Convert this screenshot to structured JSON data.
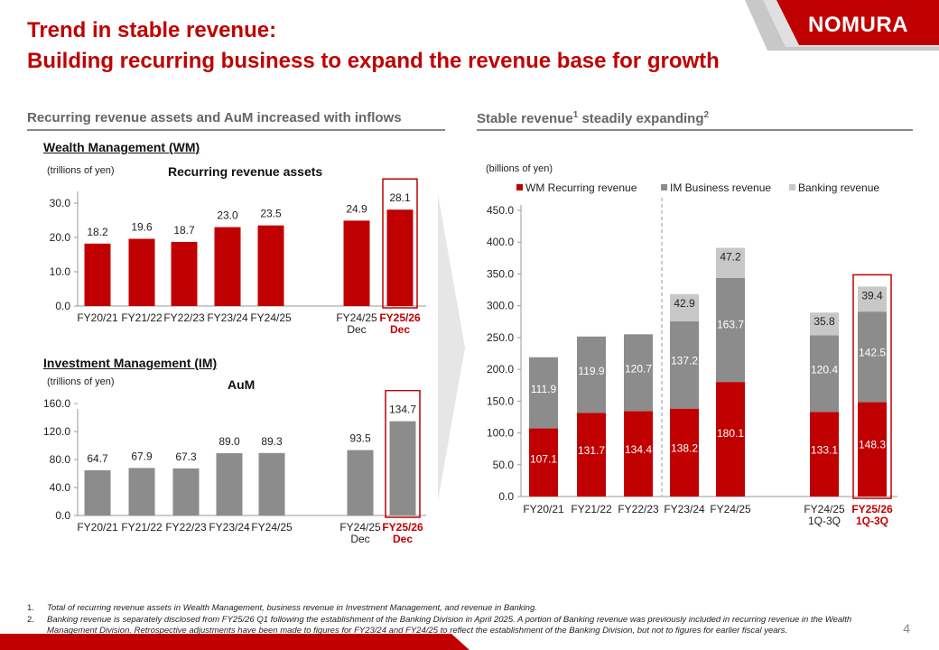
{
  "page": {
    "title_line1": "Trend in stable revenue:",
    "title_line2": "Building recurring business to expand the revenue base for growth",
    "logo_text": "NOMURA",
    "page_number": "4",
    "colors": {
      "red": "#c00000",
      "gray": "#8c8c8c",
      "lightgray": "#c8c8c8"
    }
  },
  "left": {
    "heading": "Recurring revenue assets and AuM increased with inflows",
    "wm_label": "Wealth Management (WM)",
    "im_label": "Investment Management (IM)"
  },
  "right": {
    "heading_text": "Stable revenue",
    "heading_sup1": "1",
    "heading_mid": " steadily expanding",
    "heading_sup2": "2"
  },
  "chart_data": [
    {
      "type": "bar",
      "title": "Recurring revenue assets",
      "unit_label": "(trillions of yen)",
      "categories": [
        "FY20/21",
        "FY21/22",
        "FY22/23",
        "FY23/24",
        "FY24/25",
        "FY24/25\nDec",
        "FY25/26\nDec"
      ],
      "values": [
        18.2,
        19.6,
        18.7,
        23.0,
        23.5,
        24.9,
        28.1
      ],
      "value_labels": [
        "18.2",
        "19.6",
        "18.7",
        "23.0",
        "23.5",
        "24.9",
        "28.1"
      ],
      "yticks": [
        "0.0",
        "10.0",
        "20.0",
        "30.0"
      ],
      "ylim": [
        0,
        35
      ],
      "color": "#c00000",
      "highlight_index": 6
    },
    {
      "type": "bar",
      "title": "AuM",
      "unit_label": "(trillions of  yen)",
      "categories": [
        "FY20/21",
        "FY21/22",
        "FY22/23",
        "FY23/24",
        "FY24/25",
        "FY24/25\nDec",
        "FY25/26\nDec"
      ],
      "values": [
        64.7,
        67.9,
        67.3,
        89.0,
        89.3,
        93.5,
        134.7
      ],
      "value_labels": [
        "64.7",
        "67.9",
        "67.3",
        "89.0",
        "89.3",
        "93.5",
        "134.7"
      ],
      "yticks": [
        "0.0",
        "40.0",
        "80.0",
        "120.0",
        "160.0"
      ],
      "ylim": [
        0,
        160
      ],
      "color": "#8c8c8c",
      "highlight_index": 6
    },
    {
      "type": "bar",
      "stacked": true,
      "unit_label": "(billions of yen)",
      "categories": [
        "FY20/21",
        "FY21/22",
        "FY22/23",
        "FY23/24",
        "FY24/25",
        "FY24/25\n1Q-3Q",
        "FY25/26\n1Q-3Q"
      ],
      "series": [
        {
          "name": "WM Recurring revenue",
          "color": "#c00000",
          "values": [
            107.1,
            131.7,
            134.4,
            138.2,
            180.1,
            133.1,
            148.3
          ],
          "labels": [
            "107.1",
            "131.7",
            "134.4",
            "138.2",
            "180.1",
            "133.1",
            "148.3"
          ]
        },
        {
          "name": "IM Business revenue",
          "color": "#8c8c8c",
          "values": [
            111.9,
            119.9,
            120.7,
            137.2,
            163.7,
            120.4,
            142.5
          ],
          "labels": [
            "111.9",
            "119.9",
            "120.7",
            "137.2",
            "163.7",
            "120.4",
            "142.5"
          ]
        },
        {
          "name": "Banking revenue",
          "color": "#c8c8c8",
          "values": [
            0,
            0,
            0,
            42.9,
            47.2,
            35.8,
            39.4
          ],
          "labels": [
            "",
            "",
            "",
            "42.9",
            "47.2",
            "35.8",
            "39.4"
          ]
        }
      ],
      "yticks": [
        "0.0",
        "50.0",
        "100.0",
        "150.0",
        "200.0",
        "250.0",
        "300.0",
        "350.0",
        "400.0",
        "450.0"
      ],
      "ylim": [
        0,
        450
      ],
      "legend": "top",
      "highlight_index": 6
    }
  ],
  "footnotes": [
    {
      "num": "1.",
      "text": "Total of recurring revenue assets in Wealth Management, business revenue in Investment Management, and revenue in Banking."
    },
    {
      "num": "2.",
      "text": "Banking revenue is separately disclosed from FY25/26 Q1 following the establishment of the Banking Division in April 2025. A portion of Banking revenue was previously included in recurring revenue in the Wealth Management Division. Retrospective adjustments have been made to figures for FY23/24 and FY24/25 to reflect the establishment of the Banking Division, but not to figures for earlier fiscal years."
    }
  ]
}
